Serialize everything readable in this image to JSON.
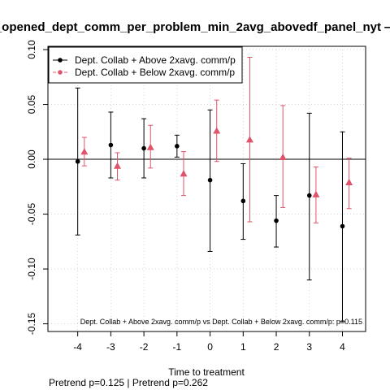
{
  "chart_data": {
    "type": "scatter",
    "title": "_opened_dept_comm_per_problem_min_2avg_abovedf_panel_nyt —",
    "xlabel": "Time to treatment",
    "ylabel": "",
    "x_ticks": [
      -4,
      -3,
      -2,
      -1,
      0,
      1,
      2,
      3,
      4
    ],
    "x_tick_labels": [
      "-4",
      "-3",
      "-2",
      "-1",
      "0",
      "1",
      "2",
      "3",
      "4"
    ],
    "y_ticks": [
      -0.15,
      -0.1,
      -0.05,
      0.0,
      0.05,
      0.1
    ],
    "y_tick_labels": [
      "-0.15",
      "-0.10",
      "-0.05",
      "0.00",
      "0.05",
      "0.10"
    ],
    "xlim": [
      -4.9,
      4.7
    ],
    "ylim": [
      -0.157,
      0.103
    ],
    "grid": true,
    "reference_line_y": 0,
    "legend_position": "top-left",
    "series": [
      {
        "name": "Dept. Collab + Above 2xavg. comm/p",
        "color": "#000000",
        "marker": "circle",
        "x": [
          -4,
          -3,
          -2,
          -1,
          0,
          1,
          2,
          3,
          4
        ],
        "y": [
          -0.002,
          0.013,
          0.01,
          0.012,
          -0.019,
          -0.038,
          -0.056,
          -0.033,
          -0.061
        ],
        "ci_low": [
          -0.069,
          -0.017,
          -0.017,
          0.002,
          -0.084,
          -0.073,
          -0.08,
          -0.11,
          -0.148
        ],
        "ci_high": [
          0.065,
          0.043,
          0.037,
          0.022,
          0.045,
          -0.004,
          -0.033,
          0.042,
          0.025
        ]
      },
      {
        "name": "Dept. Collab + Below 2xavg. comm/p",
        "color": "#DF536B",
        "marker": "triangle",
        "x": [
          -3.8,
          -2.8,
          -1.8,
          -0.8,
          0.2,
          1.2,
          2.2,
          3.2,
          4.2
        ],
        "y": [
          0.007,
          -0.006,
          0.011,
          -0.013,
          0.026,
          0.018,
          0.002,
          -0.032,
          -0.021
        ],
        "ci_low": [
          -0.006,
          -0.019,
          -0.008,
          -0.033,
          -0.002,
          -0.057,
          -0.044,
          -0.058,
          -0.045
        ],
        "ci_high": [
          0.02,
          0.006,
          0.031,
          0.007,
          0.054,
          0.093,
          0.049,
          -0.007,
          0.001
        ]
      }
    ],
    "annotation": "Dept. Collab + Above 2xavg. comm/p vs Dept. Collab + Below 2xavg. comm/p: p=0.115",
    "note": "Pretrend p=0.125 | Pretrend p=0.262"
  }
}
